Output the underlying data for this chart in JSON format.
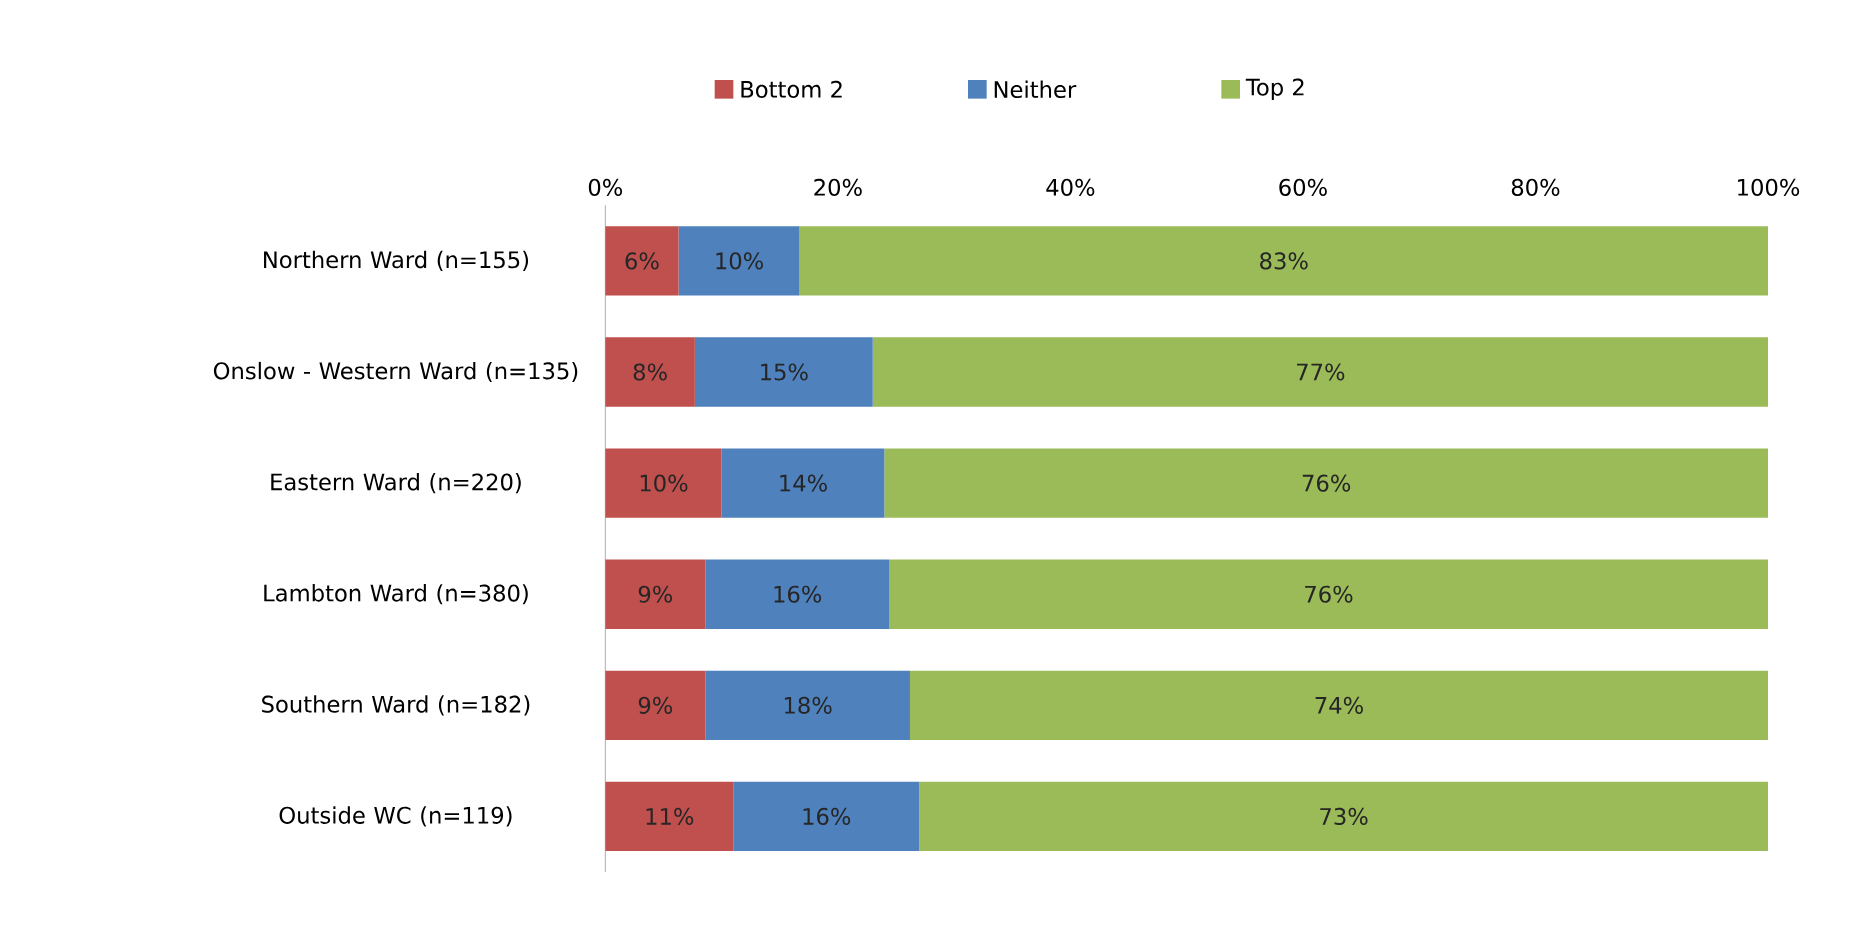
{
  "chart_data": {
    "type": "bar",
    "orientation": "horizontal",
    "stacked": true,
    "legend": "top",
    "grid": false,
    "categories": [
      "Northern Ward (n=155)",
      "Onslow - Western Ward (n=135)",
      "Eastern Ward (n=220)",
      "Lambton Ward (n=380)",
      "Southern Ward (n=182)",
      "Outside WC (n=119)"
    ],
    "xlim": [
      0,
      100
    ],
    "xticks": [
      {
        "value": 0,
        "label": "0%"
      },
      {
        "value": 20,
        "label": "20%"
      },
      {
        "value": 40,
        "label": "40%"
      },
      {
        "value": 60,
        "label": "60%"
      },
      {
        "value": 80,
        "label": "80%"
      },
      {
        "value": 100,
        "label": "100%"
      }
    ],
    "series": [
      {
        "name": "Bottom 2",
        "color": "#c0504d",
        "values": [
          6.3,
          7.7,
          10,
          8.6,
          8.6,
          11
        ],
        "value_labels": [
          "6%",
          "8%",
          "10%",
          "9%",
          "9%",
          "11%"
        ]
      },
      {
        "name": "Neither",
        "color": "#4f81bd",
        "values": [
          10.4,
          15.3,
          14,
          15.8,
          17.6,
          16
        ],
        "value_labels": [
          "10%",
          "15%",
          "14%",
          "16%",
          "18%",
          "16%"
        ]
      },
      {
        "name": "Top 2",
        "color": "#9bbb59",
        "values": [
          83.3,
          77,
          76,
          75.6,
          73.8,
          73
        ],
        "value_labels": [
          "83%",
          "77%",
          "76%",
          "76%",
          "74%",
          "73%"
        ]
      }
    ]
  }
}
